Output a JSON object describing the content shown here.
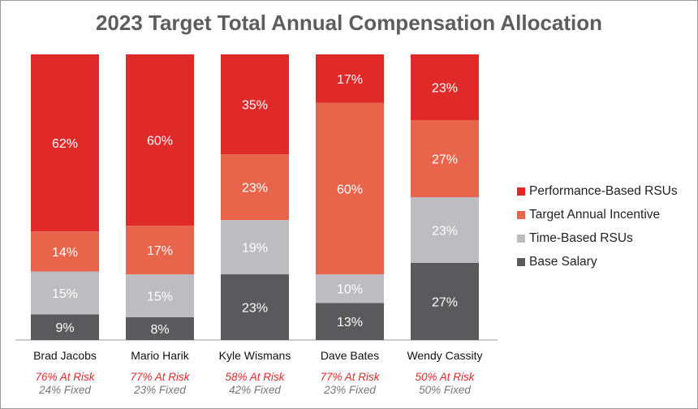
{
  "chart_data": {
    "type": "bar",
    "stacked": true,
    "title": "2023 Target Total Annual Compensation Allocation",
    "unit": "%",
    "categories": [
      "Brad Jacobs",
      "Mario Harik",
      "Kyle Wismans",
      "Dave Bates",
      "Wendy Cassity"
    ],
    "series": [
      {
        "name": "Base Salary",
        "color": "#5a5a5c",
        "values": [
          9,
          8,
          23,
          13,
          27
        ]
      },
      {
        "name": "Time-Based RSUs",
        "color": "#bdbcc1",
        "values": [
          15,
          15,
          19,
          10,
          23
        ]
      },
      {
        "name": "Target Annual Incentive",
        "color": "#e8654c",
        "values": [
          14,
          17,
          23,
          60,
          27
        ]
      },
      {
        "name": "Performance-Based RSUs",
        "color": "#e02a2a",
        "values": [
          62,
          60,
          35,
          17,
          23
        ]
      }
    ],
    "legend_order": [
      "Performance-Based RSUs",
      "Target Annual Incentive",
      "Time-Based RSUs",
      "Base Salary"
    ],
    "at_risk": [
      "76% At Risk",
      "77% At Risk",
      "58% At Risk",
      "77% At Risk",
      "50% At Risk"
    ],
    "fixed": [
      "24% Fixed",
      "23% Fixed",
      "42% Fixed",
      "23% Fixed",
      "50% Fixed"
    ],
    "at_risk_color": "#e02a2a",
    "fixed_color": "#777777",
    "label_color": "#ffffff",
    "ylim": [
      0,
      100
    ],
    "xlabel": "",
    "ylabel": "",
    "legend_position": "right"
  }
}
